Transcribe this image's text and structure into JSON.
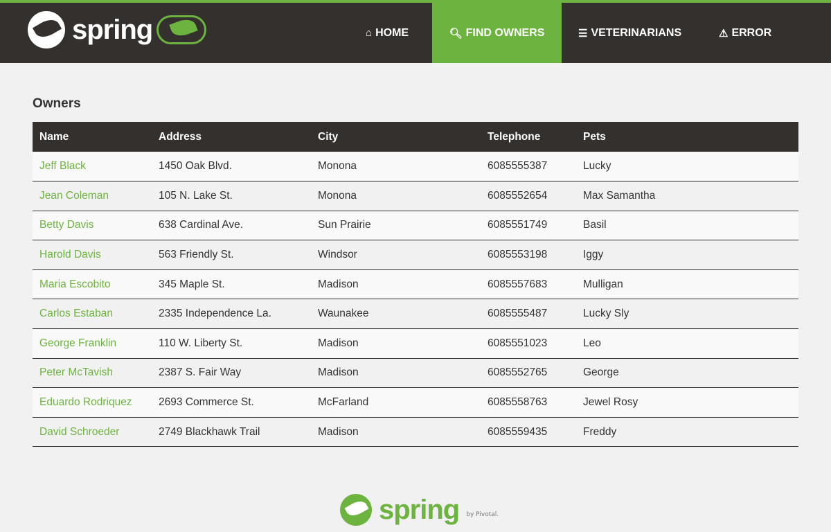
{
  "header": {
    "logo_text": "spring",
    "nav": [
      {
        "label": "HOME",
        "icon": "home-icon",
        "glyph": "⌂",
        "active": false
      },
      {
        "label": "FIND OWNERS",
        "icon": "search-icon",
        "glyph": "🔍︎",
        "active": true
      },
      {
        "label": "VETERINARIANS",
        "icon": "list-icon",
        "glyph": "☰",
        "active": false
      },
      {
        "label": "ERROR",
        "icon": "warning-icon",
        "glyph": "⚠︎",
        "active": false
      }
    ]
  },
  "page_title": "Owners",
  "table": {
    "columns": [
      "Name",
      "Address",
      "City",
      "Telephone",
      "Pets"
    ],
    "rows": [
      [
        "Jeff Black",
        "1450 Oak Blvd.",
        "Monona",
        "6085555387",
        "Lucky"
      ],
      [
        "Jean Coleman",
        "105 N. Lake St.",
        "Monona",
        "6085552654",
        "Max Samantha"
      ],
      [
        "Betty Davis",
        "638 Cardinal Ave.",
        "Sun Prairie",
        "6085551749",
        "Basil"
      ],
      [
        "Harold Davis",
        "563 Friendly St.",
        "Windsor",
        "6085553198",
        "Iggy"
      ],
      [
        "Maria Escobito",
        "345 Maple St.",
        "Madison",
        "6085557683",
        "Mulligan"
      ],
      [
        "Carlos Estaban",
        "2335 Independence La.",
        "Waunakee",
        "6085555487",
        "Lucky Sly"
      ],
      [
        "George Franklin",
        "110 W. Liberty St.",
        "Madison",
        "6085551023",
        "Leo"
      ],
      [
        "Peter McTavish",
        "2387 S. Fair Way",
        "Madison",
        "6085552765",
        "George"
      ],
      [
        "Eduardo Rodriquez",
        "2693 Commerce St.",
        "McFarland",
        "6085558763",
        "Jewel Rosy"
      ],
      [
        "David Schroeder",
        "2749 Blackhawk Trail",
        "Madison",
        "6085559435",
        "Freddy"
      ]
    ]
  },
  "footer": {
    "logo_text": "spring",
    "by": "by Pivotal."
  },
  "colors": {
    "brand_green": "#6db33f",
    "header_dark": "#34302d"
  }
}
